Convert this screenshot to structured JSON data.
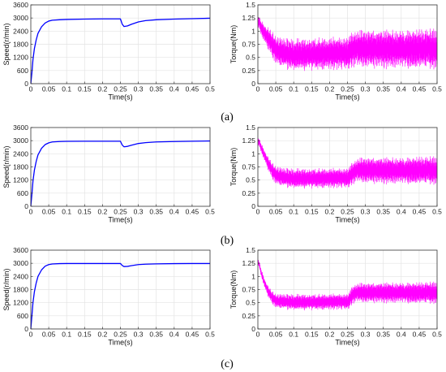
{
  "figure": {
    "captions": [
      "(a)",
      "(b)",
      "(c)"
    ]
  },
  "chart_data": [
    {
      "panel": "a-speed",
      "type": "line",
      "xlabel": "Time(s)",
      "ylabel": "Speed(r/min)",
      "xlim": [
        0,
        0.5
      ],
      "ylim": [
        0,
        3600
      ],
      "xticks": [
        "0",
        "0.05",
        "0.1",
        "0.15",
        "0.2",
        "0.25",
        "0.3",
        "0.35",
        "0.4",
        "0.45",
        "0.5"
      ],
      "yticks": [
        "0",
        "600",
        "1200",
        "1800",
        "2400",
        "3000",
        "3600"
      ],
      "grid": true,
      "series": [
        {
          "color": "#0000ff",
          "x": [
            0,
            0.003,
            0.006,
            0.01,
            0.015,
            0.02,
            0.03,
            0.04,
            0.05,
            0.06,
            0.08,
            0.1,
            0.15,
            0.2,
            0.25,
            0.255,
            0.26,
            0.27,
            0.28,
            0.3,
            0.32,
            0.35,
            0.4,
            0.45,
            0.5
          ],
          "y": [
            0,
            500,
            1100,
            1600,
            2000,
            2300,
            2600,
            2770,
            2860,
            2900,
            2920,
            2935,
            2950,
            2960,
            2960,
            2720,
            2610,
            2640,
            2710,
            2820,
            2880,
            2920,
            2950,
            2970,
            2990
          ]
        }
      ]
    },
    {
      "panel": "a-torque",
      "type": "line",
      "xlabel": "Time(s)",
      "ylabel": "Torque(Nm)",
      "xlim": [
        0,
        0.5
      ],
      "ylim": [
        0,
        1.5
      ],
      "xticks": [
        "0",
        "0.05",
        "0.1",
        "0.15",
        "0.2",
        "0.25",
        "0.3",
        "0.35",
        "0.4",
        "0.45",
        "0.5"
      ],
      "yticks": [
        "0",
        "0.25",
        "0.5",
        "0.75",
        "1",
        "1.25",
        "1.5"
      ],
      "grid": true,
      "series": [
        {
          "color": "#ff00ff",
          "center": {
            "x": [
              0,
              0.005,
              0.01,
              0.02,
              0.03,
              0.04,
              0.05,
              0.07,
              0.1,
              0.15,
              0.2,
              0.25,
              0.255,
              0.265,
              0.28,
              0.3,
              0.35,
              0.4,
              0.45,
              0.5
            ],
            "y": [
              1.2,
              1.15,
              1.05,
              0.95,
              0.85,
              0.75,
              0.65,
              0.58,
              0.55,
              0.56,
              0.58,
              0.58,
              0.6,
              0.66,
              0.68,
              0.67,
              0.66,
              0.66,
              0.67,
              0.66
            ]
          },
          "band": {
            "x": [
              0,
              0.02,
              0.05,
              0.1,
              0.25,
              0.26,
              0.3,
              0.5
            ],
            "y": [
              0.12,
              0.2,
              0.28,
              0.32,
              0.33,
              0.35,
              0.38,
              0.4
            ]
          }
        }
      ]
    },
    {
      "panel": "b-speed",
      "type": "line",
      "xlabel": "Time(s)",
      "ylabel": "Speed(r/min)",
      "xlim": [
        0,
        0.5
      ],
      "ylim": [
        0,
        3600
      ],
      "xticks": [
        "0",
        "0.05",
        "0.1",
        "0.15",
        "0.2",
        "0.25",
        "0.3",
        "0.35",
        "0.4",
        "0.45",
        "0.5"
      ],
      "yticks": [
        "0",
        "600",
        "1200",
        "1800",
        "2400",
        "3000",
        "3600"
      ],
      "grid": true,
      "series": [
        {
          "color": "#0000ff",
          "x": [
            0,
            0.003,
            0.006,
            0.01,
            0.015,
            0.02,
            0.03,
            0.04,
            0.05,
            0.06,
            0.08,
            0.1,
            0.15,
            0.2,
            0.25,
            0.255,
            0.26,
            0.27,
            0.28,
            0.3,
            0.32,
            0.35,
            0.4,
            0.45,
            0.5
          ],
          "y": [
            0,
            550,
            1150,
            1650,
            2050,
            2350,
            2650,
            2820,
            2900,
            2940,
            2960,
            2970,
            2975,
            2975,
            2975,
            2800,
            2720,
            2740,
            2790,
            2870,
            2910,
            2940,
            2960,
            2975,
            2985
          ]
        }
      ]
    },
    {
      "panel": "b-torque",
      "type": "line",
      "xlabel": "Time(s)",
      "ylabel": "Torque(Nm)",
      "xlim": [
        0,
        0.5
      ],
      "ylim": [
        0,
        1.5
      ],
      "xticks": [
        "0",
        "0.05",
        "0.1",
        "0.15",
        "0.2",
        "0.25",
        "0.3",
        "0.35",
        "0.4",
        "0.45",
        "0.5"
      ],
      "yticks": [
        "0",
        "0.25",
        "0.5",
        "0.75",
        "1",
        "1.25",
        "1.5"
      ],
      "grid": true,
      "series": [
        {
          "color": "#ff00ff",
          "center": {
            "x": [
              0,
              0.005,
              0.01,
              0.02,
              0.03,
              0.04,
              0.05,
              0.07,
              0.1,
              0.15,
              0.2,
              0.25,
              0.255,
              0.265,
              0.28,
              0.3,
              0.35,
              0.4,
              0.45,
              0.5
            ],
            "y": [
              1.25,
              1.2,
              1.1,
              0.95,
              0.8,
              0.68,
              0.6,
              0.55,
              0.53,
              0.53,
              0.54,
              0.54,
              0.56,
              0.64,
              0.7,
              0.69,
              0.68,
              0.68,
              0.69,
              0.68
            ]
          },
          "band": {
            "x": [
              0,
              0.02,
              0.05,
              0.1,
              0.25,
              0.26,
              0.3,
              0.5
            ],
            "y": [
              0.08,
              0.12,
              0.18,
              0.2,
              0.2,
              0.22,
              0.26,
              0.28
            ]
          }
        }
      ]
    },
    {
      "panel": "c-speed",
      "type": "line",
      "xlabel": "Time(s)",
      "ylabel": "Speed(r/min)",
      "xlim": [
        0,
        0.5
      ],
      "ylim": [
        0,
        3600
      ],
      "xticks": [
        "0",
        "0.05",
        "0.1",
        "0.15",
        "0.2",
        "0.25",
        "0.3",
        "0.35",
        "0.4",
        "0.45",
        "0.5"
      ],
      "yticks": [
        "0",
        "600",
        "1200",
        "1800",
        "2400",
        "3000",
        "3600"
      ],
      "grid": true,
      "series": [
        {
          "color": "#0000ff",
          "x": [
            0,
            0.003,
            0.006,
            0.01,
            0.015,
            0.02,
            0.03,
            0.04,
            0.05,
            0.06,
            0.08,
            0.1,
            0.15,
            0.2,
            0.25,
            0.255,
            0.26,
            0.27,
            0.28,
            0.3,
            0.32,
            0.35,
            0.4,
            0.45,
            0.5
          ],
          "y": [
            0,
            600,
            1200,
            1700,
            2100,
            2400,
            2700,
            2870,
            2940,
            2970,
            2985,
            2990,
            2990,
            2990,
            2990,
            2900,
            2850,
            2860,
            2890,
            2940,
            2960,
            2975,
            2985,
            2990,
            2990
          ]
        }
      ]
    },
    {
      "panel": "c-torque",
      "type": "line",
      "xlabel": "Time(s)",
      "ylabel": "Torque(Nm)",
      "xlim": [
        0,
        0.5
      ],
      "ylim": [
        0,
        1.5
      ],
      "xticks": [
        "0",
        "0.05",
        "0.1",
        "0.15",
        "0.2",
        "0.25",
        "0.3",
        "0.35",
        "0.4",
        "0.45",
        "0.5"
      ],
      "yticks": [
        "0",
        "0.25",
        "0.5",
        "0.75",
        "1",
        "1.25",
        "1.5"
      ],
      "grid": true,
      "series": [
        {
          "color": "#ff00ff",
          "center": {
            "x": [
              0,
              0.005,
              0.01,
              0.02,
              0.03,
              0.04,
              0.05,
              0.07,
              0.1,
              0.15,
              0.2,
              0.25,
              0.255,
              0.265,
              0.28,
              0.3,
              0.35,
              0.4,
              0.45,
              0.5
            ],
            "y": [
              1.3,
              1.2,
              1.05,
              0.85,
              0.7,
              0.6,
              0.54,
              0.52,
              0.51,
              0.51,
              0.52,
              0.52,
              0.55,
              0.66,
              0.7,
              0.69,
              0.69,
              0.69,
              0.69,
              0.69
            ]
          },
          "band": {
            "x": [
              0,
              0.02,
              0.05,
              0.1,
              0.25,
              0.26,
              0.3,
              0.5
            ],
            "y": [
              0.06,
              0.1,
              0.14,
              0.16,
              0.16,
              0.18,
              0.2,
              0.22
            ]
          }
        }
      ]
    }
  ]
}
